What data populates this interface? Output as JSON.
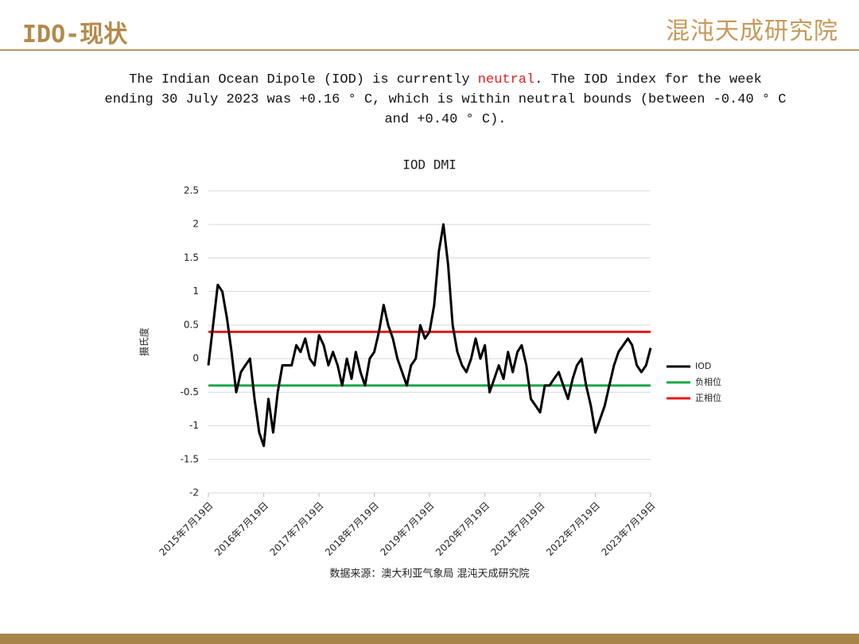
{
  "header": {
    "title": "IDO-现状",
    "logo": "混沌天成研究院"
  },
  "paragraph": {
    "before": "The Indian Ocean Dipole (IOD) is currently ",
    "highlight": "neutral",
    "after": ". The IOD index for the week ending 30 July 2023 was +0.16 ° C, which is within neutral bounds (between -0.40 ° C and +0.40 ° C)."
  },
  "chart_data": {
    "type": "line",
    "title": "IOD DMI",
    "y_label": "摄氏度",
    "x": [
      "2015-07-19",
      "2015-08-19",
      "2015-09-19",
      "2015-10-19",
      "2015-11-19",
      "2015-12-19",
      "2016-01-19",
      "2016-02-19",
      "2016-03-19",
      "2016-04-19",
      "2016-05-19",
      "2016-06-19",
      "2016-07-19",
      "2016-08-19",
      "2016-09-19",
      "2016-10-19",
      "2016-11-19",
      "2016-12-19",
      "2017-01-19",
      "2017-02-19",
      "2017-03-19",
      "2017-04-19",
      "2017-05-19",
      "2017-06-19",
      "2017-07-19",
      "2017-08-19",
      "2017-09-19",
      "2017-10-19",
      "2017-11-19",
      "2017-12-19",
      "2018-01-19",
      "2018-02-19",
      "2018-03-19",
      "2018-04-19",
      "2018-05-19",
      "2018-06-19",
      "2018-07-19",
      "2018-08-19",
      "2018-09-19",
      "2018-10-19",
      "2018-11-19",
      "2018-12-19",
      "2019-01-19",
      "2019-02-19",
      "2019-03-19",
      "2019-04-19",
      "2019-05-19",
      "2019-06-19",
      "2019-07-19",
      "2019-08-19",
      "2019-09-19",
      "2019-10-19",
      "2019-11-19",
      "2019-12-19",
      "2020-01-19",
      "2020-02-19",
      "2020-03-19",
      "2020-04-19",
      "2020-05-19",
      "2020-06-19",
      "2020-07-19",
      "2020-08-19",
      "2020-09-19",
      "2020-10-19",
      "2020-11-19",
      "2020-12-19",
      "2021-01-19",
      "2021-02-19",
      "2021-03-19",
      "2021-04-19",
      "2021-05-19",
      "2021-06-19",
      "2021-07-19",
      "2021-08-19",
      "2021-09-19",
      "2021-10-19",
      "2021-11-19",
      "2021-12-19",
      "2022-01-19",
      "2022-02-19",
      "2022-03-19",
      "2022-04-19",
      "2022-05-19",
      "2022-06-19",
      "2022-07-19",
      "2022-08-19",
      "2022-09-19",
      "2022-10-19",
      "2022-11-19",
      "2022-12-19",
      "2023-01-19",
      "2023-02-19",
      "2023-03-19",
      "2023-04-19",
      "2023-05-19",
      "2023-06-19",
      "2023-07-19"
    ],
    "series": [
      {
        "name": "IOD",
        "color": "#000000",
        "values": [
          -0.1,
          0.5,
          1.1,
          1.0,
          0.6,
          0.1,
          -0.5,
          -0.2,
          -0.1,
          0.0,
          -0.6,
          -1.1,
          -1.3,
          -0.6,
          -1.1,
          -0.5,
          -0.1,
          -0.1,
          -0.1,
          0.2,
          0.1,
          0.3,
          0.0,
          -0.1,
          0.35,
          0.2,
          -0.1,
          0.1,
          -0.1,
          -0.4,
          0.0,
          -0.3,
          0.1,
          -0.2,
          -0.4,
          0.0,
          0.1,
          0.4,
          0.8,
          0.5,
          0.3,
          0.0,
          -0.2,
          -0.4,
          -0.1,
          0.0,
          0.5,
          0.3,
          0.4,
          0.8,
          1.6,
          2.0,
          1.4,
          0.5,
          0.1,
          -0.1,
          -0.2,
          0.0,
          0.3,
          0.0,
          0.2,
          -0.5,
          -0.3,
          -0.1,
          -0.3,
          0.1,
          -0.2,
          0.1,
          0.2,
          -0.1,
          -0.6,
          -0.7,
          -0.8,
          -0.4,
          -0.4,
          -0.3,
          -0.2,
          -0.4,
          -0.6,
          -0.3,
          -0.1,
          0.0,
          -0.4,
          -0.7,
          -1.1,
          -0.9,
          -0.7,
          -0.4,
          -0.1,
          0.1,
          0.2,
          0.3,
          0.2,
          -0.1,
          -0.2,
          -0.1,
          0.16
        ]
      }
    ],
    "reference_lines": [
      {
        "name": "负相位",
        "color": "#1aa64a",
        "value": -0.4
      },
      {
        "name": "正相位",
        "color": "#e01b1b",
        "value": 0.4
      }
    ],
    "xlim": [
      "2015-07-19",
      "2023-07-19"
    ],
    "xticks": [
      {
        "value": "2015-07-19",
        "label": "2015年7月19日"
      },
      {
        "value": "2016-07-19",
        "label": "2016年7月19日"
      },
      {
        "value": "2017-07-19",
        "label": "2017年7月19日"
      },
      {
        "value": "2018-07-19",
        "label": "2018年7月19日"
      },
      {
        "value": "2019-07-19",
        "label": "2019年7月19日"
      },
      {
        "value": "2020-07-19",
        "label": "2020年7月19日"
      },
      {
        "value": "2021-07-19",
        "label": "2021年7月19日"
      },
      {
        "value": "2022-07-19",
        "label": "2022年7月19日"
      },
      {
        "value": "2023-07-19",
        "label": "2023年7月19日"
      }
    ],
    "ylim": [
      -2,
      2.5
    ],
    "yticks": [
      -2,
      -1.5,
      -1,
      -0.5,
      0,
      0.5,
      1,
      1.5,
      2,
      2.5
    ],
    "grid": true,
    "legend": "right",
    "source": "数据来源：澳大利亚气象局 混沌天成研究院"
  }
}
